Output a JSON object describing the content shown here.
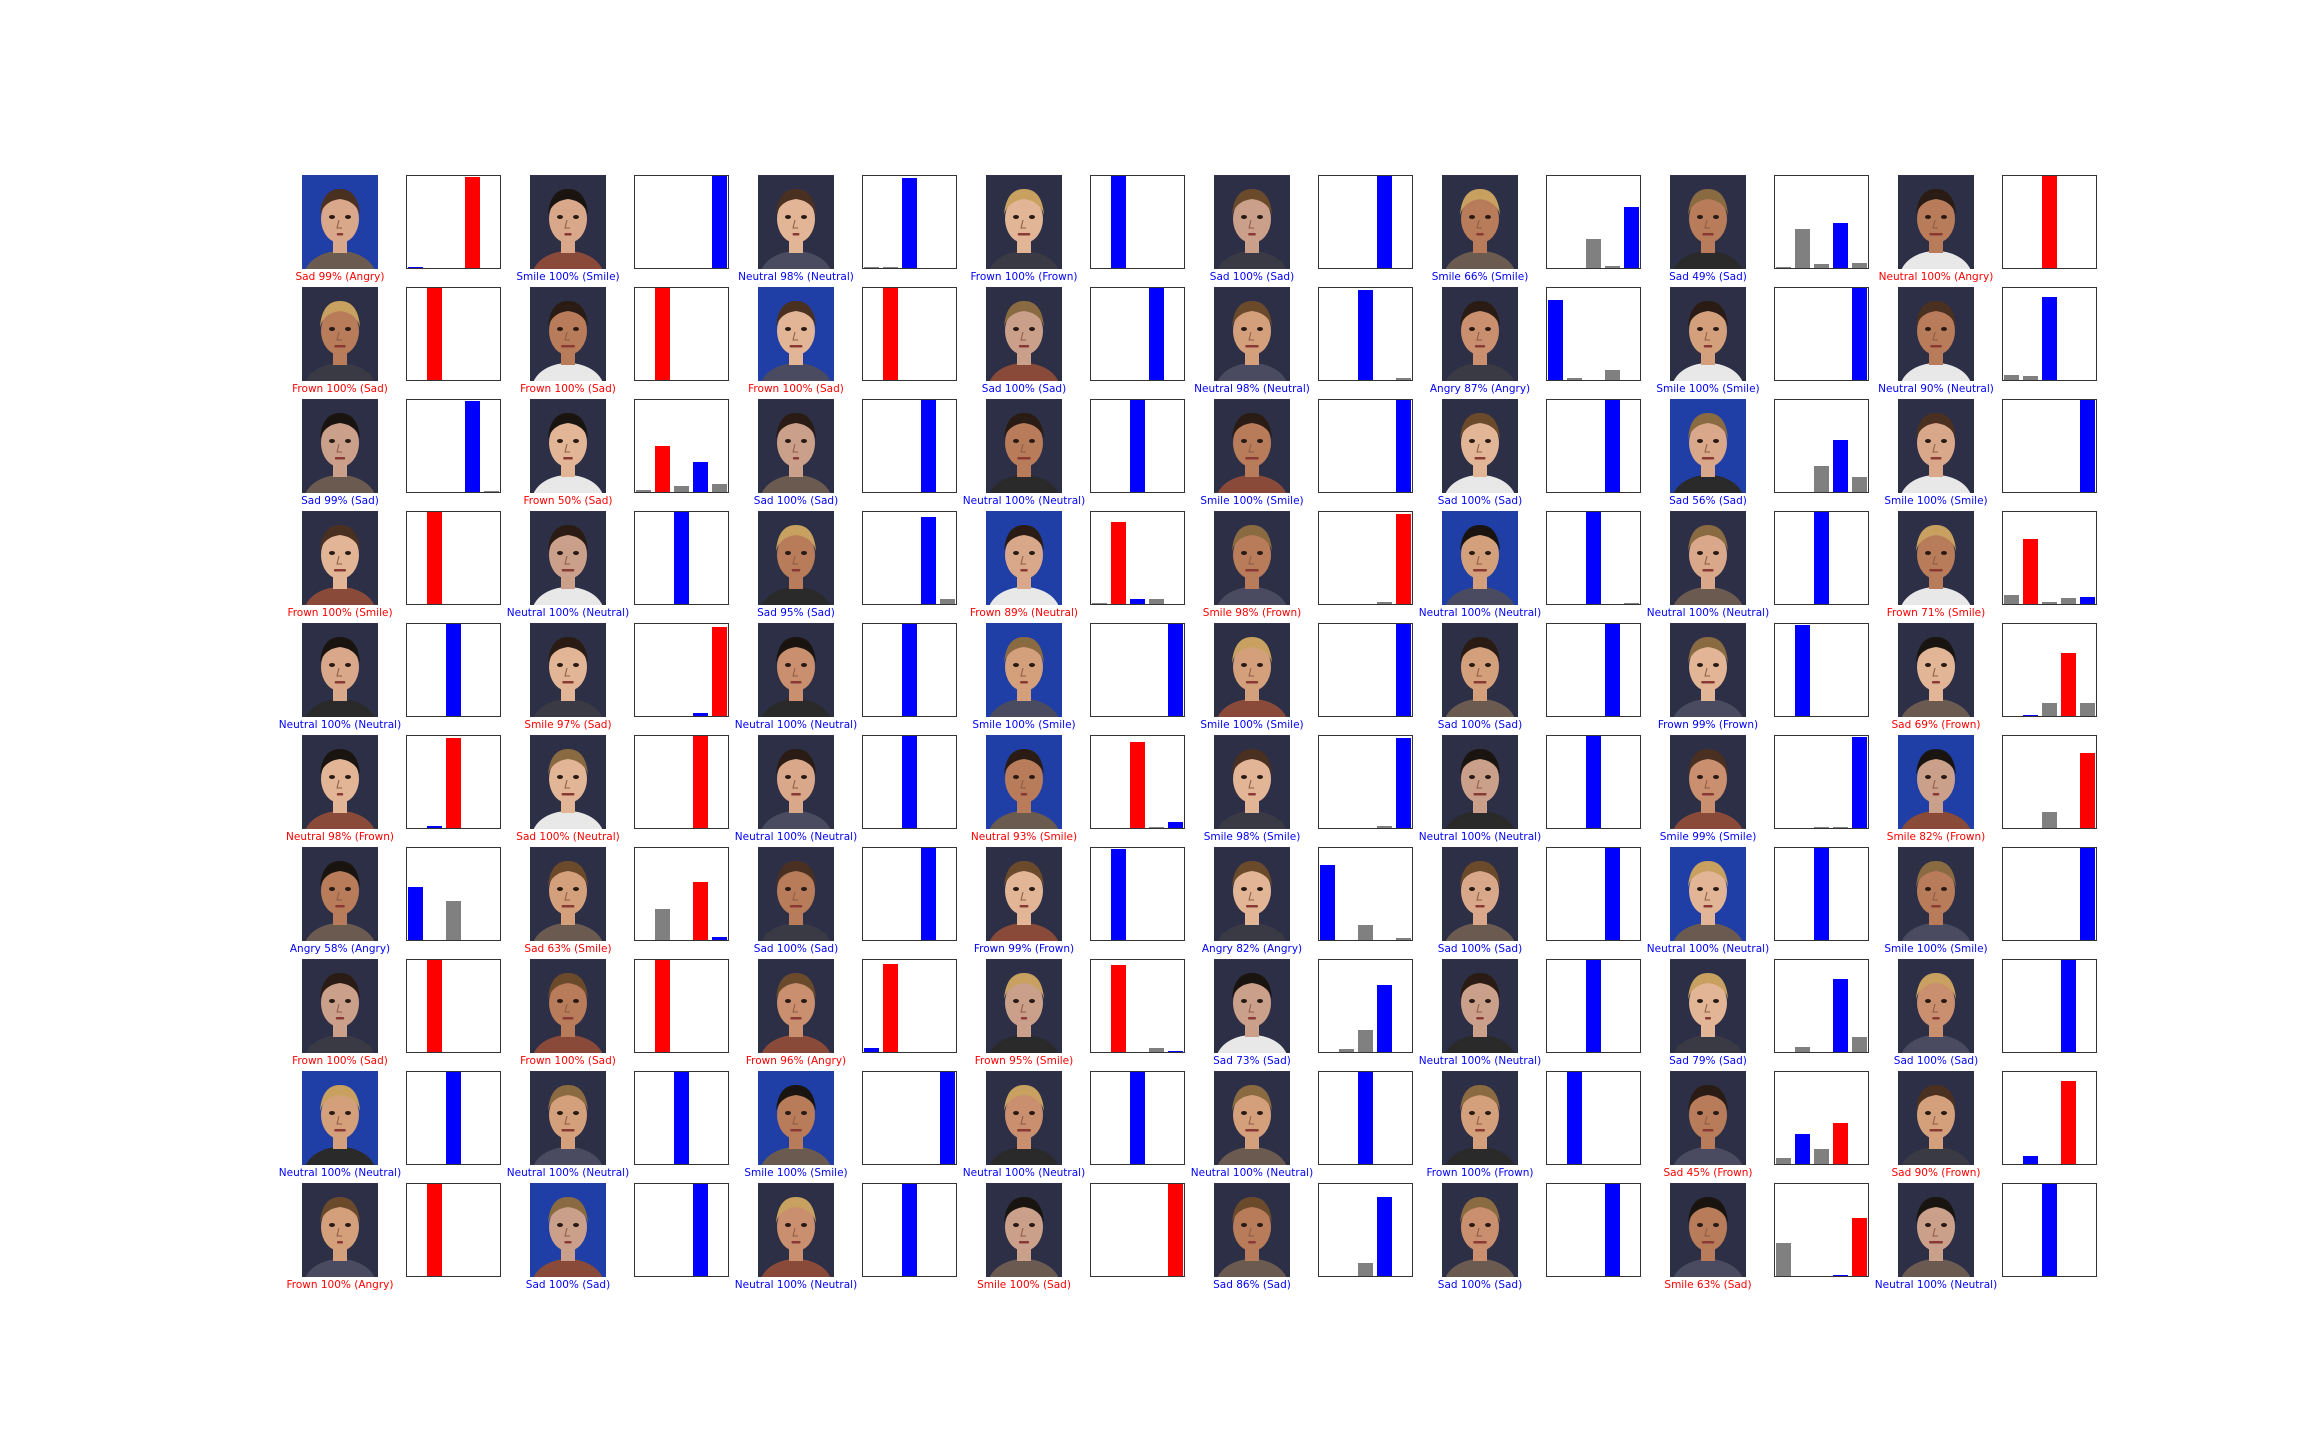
{
  "colors": {
    "correct": "#0000ff",
    "wrong": "#ff0000",
    "other": "#808080"
  },
  "classes": [
    "Angry",
    "Frown",
    "Neutral",
    "Sad",
    "Smile"
  ],
  "chart_data": {
    "type": "bar",
    "ylim": [
      0,
      1
    ],
    "panels": [
      {
        "caption": "Sad 99% (Angry)",
        "pred": 3,
        "true": 0,
        "probs": [
          0.01,
          0,
          0,
          0.99,
          0
        ]
      },
      {
        "caption": "Smile 100% (Smile)",
        "pred": 4,
        "true": 4,
        "probs": [
          0,
          0,
          0,
          0,
          1.0
        ]
      },
      {
        "caption": "Neutral 98% (Neutral)",
        "pred": 2,
        "true": 2,
        "probs": [
          0.01,
          0.01,
          0.98,
          0,
          0
        ]
      },
      {
        "caption": "Frown 100% (Frown)",
        "pred": 1,
        "true": 1,
        "probs": [
          0,
          1.0,
          0,
          0,
          0
        ]
      },
      {
        "caption": "Sad 100% (Sad)",
        "pred": 3,
        "true": 3,
        "probs": [
          0,
          0,
          0,
          1.0,
          0
        ]
      },
      {
        "caption": "Smile 66% (Smile)",
        "pred": 4,
        "true": 4,
        "probs": [
          0,
          0,
          0.31,
          0.02,
          0.66
        ]
      },
      {
        "caption": "Sad 49% (Sad)",
        "pred": 3,
        "true": 3,
        "probs": [
          0.01,
          0.42,
          0.04,
          0.49,
          0.05
        ]
      },
      {
        "caption": "Neutral 100% (Angry)",
        "pred": 2,
        "true": 0,
        "probs": [
          0,
          0,
          1.0,
          0,
          0
        ]
      },
      {
        "caption": "Frown 100% (Sad)",
        "pred": 1,
        "true": 3,
        "probs": [
          0,
          1.0,
          0,
          0,
          0
        ]
      },
      {
        "caption": "Frown 100% (Sad)",
        "pred": 1,
        "true": 3,
        "probs": [
          0,
          1.0,
          0,
          0,
          0
        ]
      },
      {
        "caption": "Frown 100% (Sad)",
        "pred": 1,
        "true": 3,
        "probs": [
          0,
          1.0,
          0,
          0,
          0
        ]
      },
      {
        "caption": "Sad 100% (Sad)",
        "pred": 3,
        "true": 3,
        "probs": [
          0,
          0,
          0,
          1.0,
          0
        ]
      },
      {
        "caption": "Neutral 98% (Neutral)",
        "pred": 2,
        "true": 2,
        "probs": [
          0,
          0,
          0.98,
          0,
          0.02
        ]
      },
      {
        "caption": "Angry 87% (Angry)",
        "pred": 0,
        "true": 0,
        "probs": [
          0.87,
          0.02,
          0,
          0.11,
          0
        ]
      },
      {
        "caption": "Smile 100% (Smile)",
        "pred": 4,
        "true": 4,
        "probs": [
          0,
          0,
          0,
          0,
          1.0
        ]
      },
      {
        "caption": "Neutral 90% (Neutral)",
        "pred": 2,
        "true": 2,
        "probs": [
          0.05,
          0.04,
          0.9,
          0,
          0
        ]
      },
      {
        "caption": "Sad 99% (Sad)",
        "pred": 3,
        "true": 3,
        "probs": [
          0,
          0,
          0,
          0.99,
          0.01
        ]
      },
      {
        "caption": "Frown 50% (Sad)",
        "pred": 1,
        "true": 3,
        "probs": [
          0.02,
          0.5,
          0.06,
          0.33,
          0.09
        ]
      },
      {
        "caption": "Sad 100% (Sad)",
        "pred": 3,
        "true": 3,
        "probs": [
          0,
          0,
          0,
          1.0,
          0
        ]
      },
      {
        "caption": "Neutral 100% (Neutral)",
        "pred": 2,
        "true": 2,
        "probs": [
          0,
          0,
          1.0,
          0,
          0
        ]
      },
      {
        "caption": "Smile 100% (Smile)",
        "pred": 4,
        "true": 4,
        "probs": [
          0,
          0,
          0,
          0,
          1.0
        ]
      },
      {
        "caption": "Sad 100% (Sad)",
        "pred": 3,
        "true": 3,
        "probs": [
          0,
          0,
          0,
          1.0,
          0
        ]
      },
      {
        "caption": "Sad 56% (Sad)",
        "pred": 3,
        "true": 3,
        "probs": [
          0,
          0,
          0.28,
          0.56,
          0.16
        ]
      },
      {
        "caption": "Smile 100% (Smile)",
        "pred": 4,
        "true": 4,
        "probs": [
          0,
          0,
          0,
          0,
          1.0
        ]
      },
      {
        "caption": "Frown 100% (Smile)",
        "pred": 1,
        "true": 4,
        "probs": [
          0,
          1.0,
          0,
          0,
          0
        ]
      },
      {
        "caption": "Neutral 100% (Neutral)",
        "pred": 2,
        "true": 2,
        "probs": [
          0,
          0,
          1.0,
          0,
          0
        ]
      },
      {
        "caption": "Sad 95% (Sad)",
        "pred": 3,
        "true": 3,
        "probs": [
          0,
          0,
          0,
          0.95,
          0.05
        ]
      },
      {
        "caption": "Frown 89% (Neutral)",
        "pred": 1,
        "true": 2,
        "probs": [
          0.01,
          0.89,
          0.05,
          0.05,
          0
        ]
      },
      {
        "caption": "Smile 98% (Frown)",
        "pred": 4,
        "true": 1,
        "probs": [
          0,
          0,
          0,
          0.02,
          0.98
        ]
      },
      {
        "caption": "Neutral 100% (Neutral)",
        "pred": 2,
        "true": 2,
        "probs": [
          0,
          0,
          1.0,
          0,
          0.01
        ]
      },
      {
        "caption": "Neutral 100% (Neutral)",
        "pred": 2,
        "true": 2,
        "probs": [
          0,
          0,
          1.0,
          0,
          0
        ]
      },
      {
        "caption": "Frown 71% (Smile)",
        "pred": 1,
        "true": 4,
        "probs": [
          0.1,
          0.71,
          0.02,
          0.07,
          0.08
        ]
      },
      {
        "caption": "Neutral 100% (Neutral)",
        "pred": 2,
        "true": 2,
        "probs": [
          0,
          0,
          1.0,
          0,
          0
        ]
      },
      {
        "caption": "Smile 97% (Sad)",
        "pred": 4,
        "true": 3,
        "probs": [
          0,
          0,
          0,
          0.03,
          0.97
        ]
      },
      {
        "caption": "Neutral 100% (Neutral)",
        "pred": 2,
        "true": 2,
        "probs": [
          0,
          0,
          1.0,
          0,
          0
        ]
      },
      {
        "caption": "Smile 100% (Smile)",
        "pred": 4,
        "true": 4,
        "probs": [
          0,
          0,
          0,
          0,
          1.0
        ]
      },
      {
        "caption": "Smile 100% (Smile)",
        "pred": 4,
        "true": 4,
        "probs": [
          0,
          0,
          0,
          0,
          1.0
        ]
      },
      {
        "caption": "Sad 100% (Sad)",
        "pred": 3,
        "true": 3,
        "probs": [
          0,
          0,
          0,
          1.0,
          0
        ]
      },
      {
        "caption": "Frown 99% (Frown)",
        "pred": 1,
        "true": 1,
        "probs": [
          0,
          0.99,
          0,
          0,
          0
        ]
      },
      {
        "caption": "Sad 69% (Frown)",
        "pred": 3,
        "true": 1,
        "probs": [
          0,
          0.01,
          0.14,
          0.69,
          0.14
        ]
      },
      {
        "caption": "Neutral 98% (Frown)",
        "pred": 2,
        "true": 1,
        "probs": [
          0,
          0.02,
          0.98,
          0,
          0
        ]
      },
      {
        "caption": "Sad 100% (Neutral)",
        "pred": 3,
        "true": 2,
        "probs": [
          0,
          0,
          0,
          1.0,
          0
        ]
      },
      {
        "caption": "Neutral 100% (Neutral)",
        "pred": 2,
        "true": 2,
        "probs": [
          0,
          0,
          1.0,
          0,
          0
        ]
      },
      {
        "caption": "Neutral 93% (Smile)",
        "pred": 2,
        "true": 4,
        "probs": [
          0,
          0,
          0.93,
          0.01,
          0.06
        ]
      },
      {
        "caption": "Smile 98% (Smile)",
        "pred": 4,
        "true": 4,
        "probs": [
          0,
          0,
          0,
          0.02,
          0.98
        ]
      },
      {
        "caption": "Neutral 100% (Neutral)",
        "pred": 2,
        "true": 2,
        "probs": [
          0,
          0,
          1.0,
          0,
          0
        ]
      },
      {
        "caption": "Smile 99% (Smile)",
        "pred": 4,
        "true": 4,
        "probs": [
          0,
          0,
          0.01,
          0.01,
          0.99
        ]
      },
      {
        "caption": "Smile 82% (Frown)",
        "pred": 4,
        "true": 1,
        "probs": [
          0,
          0,
          0.17,
          0,
          0.82
        ]
      },
      {
        "caption": "Angry 58% (Angry)",
        "pred": 0,
        "true": 0,
        "probs": [
          0.58,
          0,
          0.42,
          0,
          0
        ]
      },
      {
        "caption": "Sad 63% (Smile)",
        "pred": 3,
        "true": 4,
        "probs": [
          0,
          0.34,
          0,
          0.63,
          0.03
        ]
      },
      {
        "caption": "Sad 100% (Sad)",
        "pred": 3,
        "true": 3,
        "probs": [
          0,
          0,
          0,
          1.0,
          0
        ]
      },
      {
        "caption": "Frown 99% (Frown)",
        "pred": 1,
        "true": 1,
        "probs": [
          0,
          0.99,
          0,
          0,
          0
        ]
      },
      {
        "caption": "Angry 82% (Angry)",
        "pred": 0,
        "true": 0,
        "probs": [
          0.82,
          0,
          0.16,
          0,
          0.02
        ]
      },
      {
        "caption": "Sad 100% (Sad)",
        "pred": 3,
        "true": 3,
        "probs": [
          0,
          0,
          0,
          1.0,
          0
        ]
      },
      {
        "caption": "Neutral 100% (Neutral)",
        "pred": 2,
        "true": 2,
        "probs": [
          0,
          0,
          1.0,
          0,
          0
        ]
      },
      {
        "caption": "Smile 100% (Smile)",
        "pred": 4,
        "true": 4,
        "probs": [
          0,
          0,
          0,
          0,
          1.0
        ]
      },
      {
        "caption": "Frown 100% (Sad)",
        "pred": 1,
        "true": 3,
        "probs": [
          0,
          1.0,
          0,
          0,
          0
        ]
      },
      {
        "caption": "Frown 100% (Sad)",
        "pred": 1,
        "true": 3,
        "probs": [
          0,
          1.0,
          0,
          0,
          0
        ]
      },
      {
        "caption": "Frown 96% (Angry)",
        "pred": 1,
        "true": 0,
        "probs": [
          0.04,
          0.96,
          0,
          0,
          0
        ]
      },
      {
        "caption": "Frown 95% (Smile)",
        "pred": 1,
        "true": 4,
        "probs": [
          0,
          0.95,
          0,
          0.04,
          0.01
        ]
      },
      {
        "caption": "Sad 73% (Sad)",
        "pred": 3,
        "true": 3,
        "probs": [
          0,
          0.03,
          0.24,
          0.73,
          0
        ]
      },
      {
        "caption": "Neutral 100% (Neutral)",
        "pred": 2,
        "true": 2,
        "probs": [
          0,
          0,
          1.0,
          0,
          0
        ]
      },
      {
        "caption": "Sad 79% (Sad)",
        "pred": 3,
        "true": 3,
        "probs": [
          0,
          0.05,
          0,
          0.79,
          0.16
        ]
      },
      {
        "caption": "Sad 100% (Sad)",
        "pred": 3,
        "true": 3,
        "probs": [
          0,
          0,
          0,
          1.0,
          0
        ]
      },
      {
        "caption": "Neutral 100% (Neutral)",
        "pred": 2,
        "true": 2,
        "probs": [
          0,
          0,
          1.0,
          0,
          0
        ]
      },
      {
        "caption": "Neutral 100% (Neutral)",
        "pred": 2,
        "true": 2,
        "probs": [
          0,
          0,
          1.0,
          0,
          0
        ]
      },
      {
        "caption": "Smile 100% (Smile)",
        "pred": 4,
        "true": 4,
        "probs": [
          0,
          0,
          0,
          0,
          1.0
        ]
      },
      {
        "caption": "Neutral 100% (Neutral)",
        "pred": 2,
        "true": 2,
        "probs": [
          0,
          0,
          1.0,
          0,
          0
        ]
      },
      {
        "caption": "Neutral 100% (Neutral)",
        "pred": 2,
        "true": 2,
        "probs": [
          0,
          0,
          1.0,
          0,
          0
        ]
      },
      {
        "caption": "Frown 100% (Frown)",
        "pred": 1,
        "true": 1,
        "probs": [
          0,
          1.0,
          0,
          0,
          0
        ]
      },
      {
        "caption": "Sad 45% (Frown)",
        "pred": 3,
        "true": 1,
        "probs": [
          0.07,
          0.33,
          0.16,
          0.45,
          0
        ]
      },
      {
        "caption": "Sad 90% (Frown)",
        "pred": 3,
        "true": 1,
        "probs": [
          0,
          0.09,
          0,
          0.9,
          0
        ]
      },
      {
        "caption": "Frown 100% (Angry)",
        "pred": 1,
        "true": 0,
        "probs": [
          0,
          1.0,
          0,
          0,
          0
        ]
      },
      {
        "caption": "Sad 100% (Sad)",
        "pred": 3,
        "true": 3,
        "probs": [
          0,
          0,
          0,
          1.0,
          0
        ]
      },
      {
        "caption": "Neutral 100% (Neutral)",
        "pred": 2,
        "true": 2,
        "probs": [
          0,
          0,
          1.0,
          0,
          0
        ]
      },
      {
        "caption": "Smile 100% (Sad)",
        "pred": 4,
        "true": 3,
        "probs": [
          0,
          0,
          0,
          0,
          1.0
        ]
      },
      {
        "caption": "Sad 86% (Sad)",
        "pred": 3,
        "true": 3,
        "probs": [
          0,
          0,
          0.14,
          0.86,
          0
        ]
      },
      {
        "caption": "Sad 100% (Sad)",
        "pred": 3,
        "true": 3,
        "probs": [
          0,
          0,
          0,
          1.0,
          0
        ]
      },
      {
        "caption": "Smile 63% (Sad)",
        "pred": 4,
        "true": 3,
        "probs": [
          0.36,
          0,
          0,
          0.01,
          0.63
        ]
      },
      {
        "caption": "Neutral 100% (Neutral)",
        "pred": 2,
        "true": 2,
        "probs": [
          0,
          0,
          1.0,
          0,
          0
        ]
      }
    ]
  }
}
